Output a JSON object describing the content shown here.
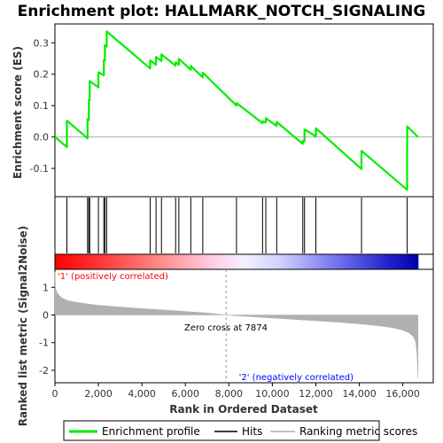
{
  "chart_data": {
    "type": "line",
    "title": "Enrichment plot: HALLMARK_NOTCH_SIGNALING",
    "n_ranked": 16700,
    "panels": {
      "enrichment": {
        "ylabel": "Enrichment score (ES)",
        "ylim": [
          -0.19,
          0.36
        ],
        "yticks": [
          -0.1,
          0.0,
          0.1,
          0.2,
          0.3
        ],
        "ytick_labels": [
          "-0.1",
          "0.0",
          "0.1",
          "0.2",
          "0.3"
        ]
      },
      "metric": {
        "ylabel": "Ranked list metric (Signal2Noise)",
        "ylim": [
          -2.45,
          1.65
        ],
        "yticks": [
          -2,
          -1,
          0,
          1
        ],
        "ytick_labels": [
          "-2",
          "-1",
          "0",
          "1"
        ]
      }
    },
    "xlabel": "Rank in Ordered Dataset",
    "xlim": [
      0,
      17400
    ],
    "xticks": [
      0,
      2000,
      4000,
      6000,
      8000,
      10000,
      12000,
      14000,
      16000
    ],
    "xtick_labels": [
      "0",
      "2,000",
      "4,000",
      "6,000",
      "8,000",
      "10,000",
      "12,000",
      "14,000",
      "16,000"
    ],
    "hits": [
      550,
      1500,
      1560,
      1600,
      2000,
      2250,
      2300,
      2380,
      4380,
      4650,
      4900,
      5550,
      5700,
      6250,
      6800,
      8350,
      9550,
      9700,
      10200,
      11400,
      11480,
      12000,
      14100,
      16200
    ],
    "es_curve": [
      [
        0,
        0.0
      ],
      [
        549,
        -0.032
      ],
      [
        550,
        0.052
      ],
      [
        1499,
        -0.004
      ],
      [
        1500,
        0.057
      ],
      [
        1559,
        0.054
      ],
      [
        1560,
        0.118
      ],
      [
        1599,
        0.117
      ],
      [
        1600,
        0.178
      ],
      [
        1999,
        0.158
      ],
      [
        2000,
        0.206
      ],
      [
        2249,
        0.196
      ],
      [
        2250,
        0.245
      ],
      [
        2299,
        0.244
      ],
      [
        2300,
        0.292
      ],
      [
        2379,
        0.288
      ],
      [
        2380,
        0.336
      ],
      [
        4379,
        0.218
      ],
      [
        4380,
        0.244
      ],
      [
        4649,
        0.23
      ],
      [
        4650,
        0.255
      ],
      [
        4899,
        0.242
      ],
      [
        4900,
        0.263
      ],
      [
        5549,
        0.227
      ],
      [
        5550,
        0.238
      ],
      [
        5699,
        0.23
      ],
      [
        5700,
        0.249
      ],
      [
        6249,
        0.214
      ],
      [
        6250,
        0.226
      ],
      [
        6799,
        0.19
      ],
      [
        6800,
        0.205
      ],
      [
        8349,
        0.1
      ],
      [
        8350,
        0.108
      ],
      [
        9549,
        0.044
      ],
      [
        9550,
        0.05
      ],
      [
        9699,
        0.046
      ],
      [
        9700,
        0.06
      ],
      [
        10199,
        0.035
      ],
      [
        10200,
        0.048
      ],
      [
        11399,
        -0.022
      ],
      [
        11400,
        -0.012
      ],
      [
        11479,
        -0.014
      ],
      [
        11480,
        0.024
      ],
      [
        11999,
        0.002
      ],
      [
        12000,
        0.028
      ],
      [
        14099,
        -0.102
      ],
      [
        14100,
        -0.044
      ],
      [
        16199,
        -0.168
      ],
      [
        16200,
        0.034
      ],
      [
        16700,
        0.0
      ]
    ],
    "metric_curve": [
      [
        0,
        1.55
      ],
      [
        30,
        0.95
      ],
      [
        100,
        0.8
      ],
      [
        300,
        0.62
      ],
      [
        600,
        0.52
      ],
      [
        1000,
        0.46
      ],
      [
        1500,
        0.4
      ],
      [
        2000,
        0.35
      ],
      [
        3000,
        0.29
      ],
      [
        4000,
        0.23
      ],
      [
        5000,
        0.18
      ],
      [
        6000,
        0.13
      ],
      [
        7000,
        0.07
      ],
      [
        7874,
        0.0
      ],
      [
        9000,
        -0.06
      ],
      [
        10000,
        -0.11
      ],
      [
        11000,
        -0.16
      ],
      [
        12000,
        -0.21
      ],
      [
        13000,
        -0.26
      ],
      [
        14000,
        -0.32
      ],
      [
        15000,
        -0.4
      ],
      [
        15600,
        -0.47
      ],
      [
        16000,
        -0.55
      ],
      [
        16300,
        -0.65
      ],
      [
        16500,
        -0.8
      ],
      [
        16600,
        -1.0
      ],
      [
        16650,
        -1.4
      ],
      [
        16700,
        -2.3
      ]
    ],
    "zero_cross": 7874,
    "zero_cross_label": "Zero cross at 7874",
    "pos_label": "'1' (positively correlated)",
    "neg_label": "'2' (negatively correlated)",
    "legend": [
      "Enrichment profile",
      "Hits",
      "Ranking metric scores"
    ],
    "colors": {
      "es_line": "#00ee00",
      "hit_line": "#000000",
      "metric_fill": "#b0b0b0",
      "pos_text": "#ff0000",
      "neg_text": "#0000ff",
      "zero_line": "#aaaaaa"
    }
  }
}
